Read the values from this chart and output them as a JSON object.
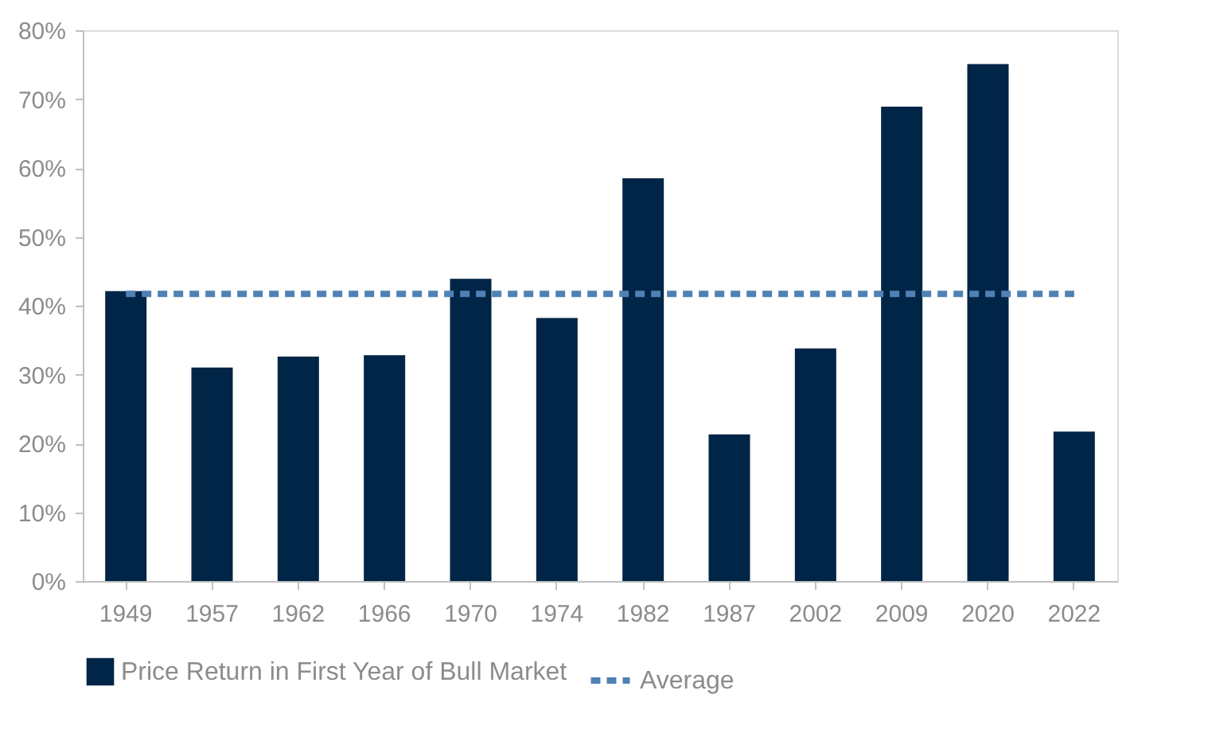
{
  "chart_data": {
    "type": "bar",
    "categories": [
      "1949",
      "1957",
      "1962",
      "1966",
      "1970",
      "1974",
      "1982",
      "1987",
      "2002",
      "2009",
      "2020",
      "2022"
    ],
    "series": [
      {
        "name": "Price Return in First Year of Bull Market",
        "color": "#002546",
        "values": [
          42.1,
          31.0,
          32.6,
          32.8,
          43.9,
          38.2,
          58.5,
          21.3,
          33.8,
          68.9,
          75.1,
          21.7
        ]
      },
      {
        "name": "Average",
        "type": "line",
        "line_style": "dashed",
        "color": "#4f81b4",
        "values": [
          41.7,
          41.7,
          41.7,
          41.7,
          41.7,
          41.7,
          41.7,
          41.7,
          41.7,
          41.7,
          41.7,
          41.7
        ]
      }
    ],
    "ylim": [
      0,
      80
    ],
    "yticks": [
      {
        "value": 0,
        "label": "0%"
      },
      {
        "value": 10,
        "label": "10%"
      },
      {
        "value": 20,
        "label": "20%"
      },
      {
        "value": 30,
        "label": "30%"
      },
      {
        "value": 40,
        "label": "40%"
      },
      {
        "value": 50,
        "label": "50%"
      },
      {
        "value": 60,
        "label": "60%"
      },
      {
        "value": 70,
        "label": "70%"
      },
      {
        "value": 80,
        "label": "80%"
      }
    ],
    "grid": false,
    "legend": "bottom"
  }
}
